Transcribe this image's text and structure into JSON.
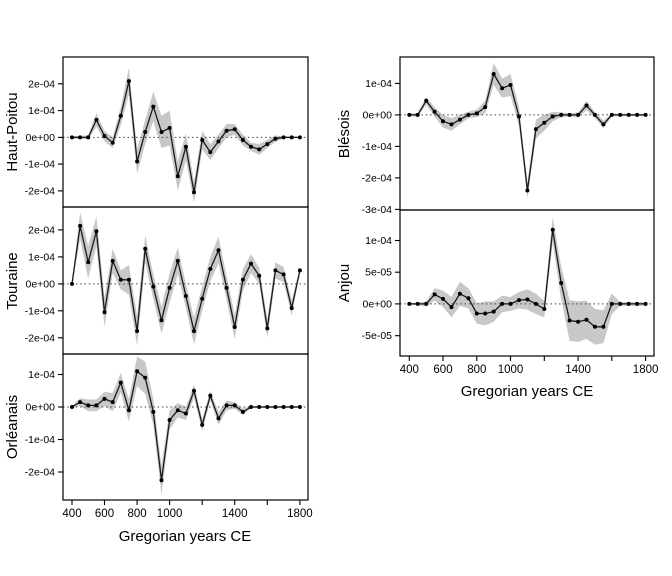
{
  "figure": {
    "xlabel": "Gregorian years CE",
    "x_range": [
      345,
      1850
    ],
    "x_ticks": [
      400,
      600,
      800,
      1000,
      1200,
      1400,
      1600,
      1800
    ],
    "x_tick_labels": [
      "400",
      "600",
      "800",
      "1000",
      "",
      "1400",
      "",
      "1800"
    ],
    "colors": {
      "line": "#1a1a1a",
      "marker": "#000000",
      "band": "#c8c8c8",
      "zero": "#404040",
      "axis": "#000000",
      "background": "#ffffff"
    }
  },
  "chart_data": [
    {
      "type": "line",
      "id": "haut-poitou",
      "region": "Haut-Poitou",
      "x": [
        400,
        450,
        500,
        550,
        600,
        650,
        700,
        750,
        800,
        850,
        900,
        950,
        1000,
        1050,
        1100,
        1150,
        1200,
        1250,
        1300,
        1350,
        1400,
        1450,
        1500,
        1550,
        1600,
        1650,
        1700,
        1750,
        1800
      ],
      "values": [
        0,
        0,
        0,
        6.5e-05,
        5e-06,
        -2e-05,
        8e-05,
        0.00021,
        -9e-05,
        2e-05,
        0.000115,
        2e-05,
        3.5e-05,
        -0.000145,
        -3.5e-05,
        -0.000205,
        -1e-05,
        -5.5e-05,
        -1.5e-05,
        2.5e-05,
        3e-05,
        -1e-05,
        -3.5e-05,
        -4.5e-05,
        -2.5e-05,
        -5e-06,
        0,
        0,
        0
      ],
      "band_half_width": [
        5e-06,
        5e-06,
        8e-06,
        2.5e-05,
        2e-05,
        2e-05,
        3.5e-05,
        5e-05,
        4.5e-05,
        4.5e-05,
        5.5e-05,
        6e-05,
        6.5e-05,
        5.5e-05,
        5e-05,
        4e-05,
        3.5e-05,
        3e-05,
        2.5e-05,
        2.5e-05,
        2e-05,
        2e-05,
        1.5e-05,
        2e-05,
        1.5e-05,
        1.2e-05,
        4e-06,
        3e-06,
        3e-06
      ],
      "y_ticks": [
        0.0002,
        0.0001,
        0,
        -0.0001,
        -0.0002
      ],
      "y_tick_labels": [
        "2e-04",
        "1e-04",
        "0e+00",
        "-1e-04",
        "-2e-04"
      ],
      "ylim": [
        -0.00026,
        0.0003
      ],
      "zero_line": true
    },
    {
      "type": "line",
      "id": "touraine",
      "region": "Touraine",
      "x": [
        400,
        450,
        500,
        550,
        600,
        650,
        700,
        750,
        800,
        850,
        900,
        950,
        1000,
        1050,
        1100,
        1150,
        1200,
        1250,
        1300,
        1350,
        1400,
        1450,
        1500,
        1550,
        1600,
        1650,
        1700,
        1750,
        1800
      ],
      "values": [
        0,
        0.000215,
        8e-05,
        0.000195,
        -0.000105,
        8.5e-05,
        1.5e-05,
        1.5e-05,
        -0.000175,
        0.00013,
        -1e-05,
        -0.000135,
        -1.5e-05,
        8.5e-05,
        -4.5e-05,
        -0.000175,
        -5.5e-05,
        5.5e-05,
        0.000125,
        -1.5e-05,
        -0.00016,
        1.5e-05,
        7.5e-05,
        3e-05,
        -0.000165,
        5e-05,
        3.5e-05,
        -9e-05,
        5e-05
      ],
      "band_half_width": [
        8e-06,
        5e-05,
        6e-05,
        5.5e-05,
        5.5e-05,
        4.5e-05,
        3.5e-05,
        5.5e-05,
        5.5e-05,
        5e-05,
        4.5e-05,
        5e-05,
        5.5e-05,
        5e-05,
        4.5e-05,
        5e-05,
        4.5e-05,
        4.5e-05,
        5e-05,
        4.5e-05,
        4.5e-05,
        4e-05,
        3.5e-05,
        3e-05,
        3.5e-05,
        3e-05,
        2.8e-05,
        2.8e-05,
        1.2e-05
      ],
      "y_ticks": [
        0.0002,
        0.0001,
        0,
        -0.0001,
        -0.0002
      ],
      "y_tick_labels": [
        "2e-04",
        "1e-04",
        "0e+00",
        "-1e-04",
        "-2e-04"
      ],
      "ylim": [
        -0.00026,
        0.000285
      ],
      "zero_line": true
    },
    {
      "type": "line",
      "id": "orleanais",
      "region": "Orléanais",
      "x": [
        400,
        450,
        500,
        550,
        600,
        650,
        700,
        750,
        800,
        850,
        900,
        950,
        1000,
        1050,
        1100,
        1150,
        1200,
        1250,
        1300,
        1350,
        1400,
        1450,
        1500,
        1550,
        1600,
        1650,
        1700,
        1750,
        1800
      ],
      "values": [
        0,
        1.5e-05,
        5e-06,
        5e-06,
        2.5e-05,
        1.5e-05,
        7.5e-05,
        -1e-05,
        0.00011,
        9e-05,
        -1.5e-05,
        -0.000225,
        -4e-05,
        -1e-05,
        -2e-05,
        5e-05,
        -5.5e-05,
        3.5e-05,
        -3.5e-05,
        5e-06,
        5e-06,
        -1.5e-05,
        0,
        0,
        0,
        0,
        0,
        0,
        0
      ],
      "band_half_width": [
        4e-06,
        1.2e-05,
        1.8e-05,
        1.8e-05,
        2.2e-05,
        2.8e-05,
        3e-05,
        3.5e-05,
        4.5e-05,
        5e-05,
        4e-05,
        4.5e-05,
        3e-05,
        2.2e-05,
        2e-05,
        2e-05,
        1.8e-05,
        1.5e-05,
        2e-05,
        1.5e-05,
        1e-05,
        1e-05,
        4e-06,
        3e-06,
        3e-06,
        3e-06,
        3e-06,
        3e-06,
        3e-06
      ],
      "y_ticks": [
        0.0001,
        0,
        -0.0001,
        -0.0002
      ],
      "y_tick_labels": [
        "1e-04",
        "0e+00",
        "-1e-04",
        "-2e-04"
      ],
      "ylim": [
        -0.000286,
        0.000163
      ],
      "zero_line": true
    },
    {
      "type": "line",
      "id": "blesois",
      "region": "Blésois",
      "x": [
        400,
        450,
        500,
        550,
        600,
        650,
        700,
        750,
        800,
        850,
        900,
        950,
        1000,
        1050,
        1100,
        1150,
        1200,
        1250,
        1300,
        1350,
        1400,
        1450,
        1500,
        1550,
        1600,
        1650,
        1700,
        1750,
        1800
      ],
      "values": [
        0,
        0,
        4.5e-05,
        1e-05,
        -2e-05,
        -3e-05,
        -1.5e-05,
        0,
        5e-06,
        2.5e-05,
        0.00013,
        8.5e-05,
        9.5e-05,
        -5e-06,
        -0.00024,
        -4.5e-05,
        -2.5e-05,
        -5e-06,
        0,
        0,
        0,
        3e-05,
        0,
        -3e-05,
        0,
        0,
        0,
        0,
        0
      ],
      "band_half_width": [
        4e-06,
        6e-06,
        1.2e-05,
        1.5e-05,
        2e-05,
        2e-05,
        1.5e-05,
        1e-05,
        1.2e-05,
        2e-05,
        3.5e-05,
        3e-05,
        3.5e-05,
        3e-05,
        2.5e-05,
        3e-05,
        2.5e-05,
        1.5e-05,
        8e-06,
        5e-06,
        8e-06,
        1.5e-05,
        1e-05,
        1.2e-05,
        5e-06,
        4e-06,
        4e-06,
        4e-06,
        4e-06
      ],
      "y_ticks": [
        0.0001,
        0,
        -0.0001,
        -0.0002,
        -0.0003
      ],
      "y_tick_labels": [
        "1e-04",
        "0e+00",
        "-1e-04",
        "-2e-04",
        "-3e-04"
      ],
      "ylim": [
        -0.000302,
        0.000184
      ],
      "zero_line": true
    },
    {
      "type": "line",
      "id": "anjou",
      "region": "Anjou",
      "x": [
        400,
        450,
        500,
        550,
        600,
        650,
        700,
        750,
        800,
        850,
        900,
        950,
        1000,
        1050,
        1100,
        1150,
        1200,
        1250,
        1300,
        1350,
        1400,
        1450,
        1500,
        1550,
        1600,
        1650,
        1700,
        1750,
        1800
      ],
      "values": [
        0,
        0,
        0,
        1.5e-05,
        8e-06,
        -5e-06,
        1.6e-05,
        9e-06,
        -1.5e-05,
        -1.5e-05,
        -1.2e-05,
        0,
        0,
        6e-06,
        7e-06,
        0,
        -8e-06,
        0.000117,
        3.3e-05,
        -2.6e-05,
        -2.8e-05,
        -2.5e-05,
        -3.6e-05,
        -3.6e-05,
        0,
        0,
        0,
        0,
        0
      ],
      "band_half_width": [
        2e-06,
        2e-06,
        4e-06,
        1e-05,
        1.3e-05,
        1.6e-05,
        1.9e-05,
        1.6e-05,
        1.6e-05,
        1.9e-05,
        1.6e-05,
        1.3e-05,
        1.1e-05,
        1.3e-05,
        1.6e-05,
        1.6e-05,
        1.3e-05,
        2e-05,
        2.6e-05,
        3.2e-05,
        3.2e-05,
        3e-05,
        2.8e-05,
        2.6e-05,
        1.6e-05,
        3e-06,
        3e-06,
        3e-06,
        3e-06
      ],
      "y_ticks": [
        0.0001,
        5e-05,
        0,
        -5e-05
      ],
      "y_tick_labels": [
        "1e-04",
        "5e-05",
        "0e+00",
        "-5e-05"
      ],
      "ylim": [
        -8.2e-05,
        0.000148
      ],
      "zero_line": true
    }
  ]
}
